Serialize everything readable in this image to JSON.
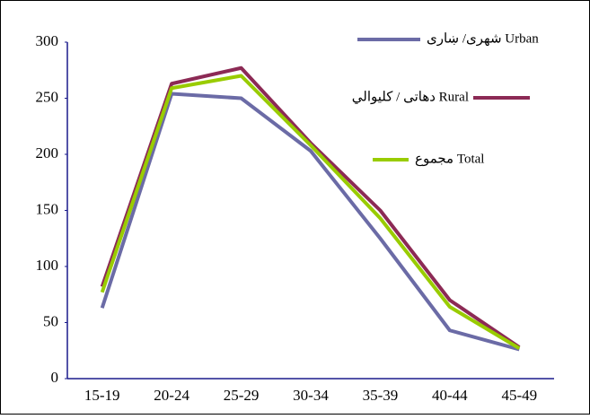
{
  "chart_data": {
    "type": "line",
    "categories": [
      "15-19",
      "20-24",
      "25-29",
      "30-34",
      "35-39",
      "40-44",
      "45-49"
    ],
    "series": [
      {
        "name": "شهری/ ښاری Urban",
        "color": "#6b6ba6",
        "values": [
          63,
          254,
          250,
          203,
          125,
          43,
          26
        ]
      },
      {
        "name": "دهاتی / کلیوالي Rural",
        "color": "#8c2a55",
        "values": [
          82,
          263,
          277,
          210,
          150,
          70,
          28
        ]
      },
      {
        "name": "مجموع  Total",
        "color": "#99cc00",
        "values": [
          77,
          259,
          270,
          208,
          143,
          64,
          27
        ]
      }
    ],
    "ylim": [
      0,
      300
    ],
    "yticks": [
      0,
      50,
      100,
      150,
      200,
      250,
      300
    ],
    "grid": false,
    "legend": "upper right"
  }
}
